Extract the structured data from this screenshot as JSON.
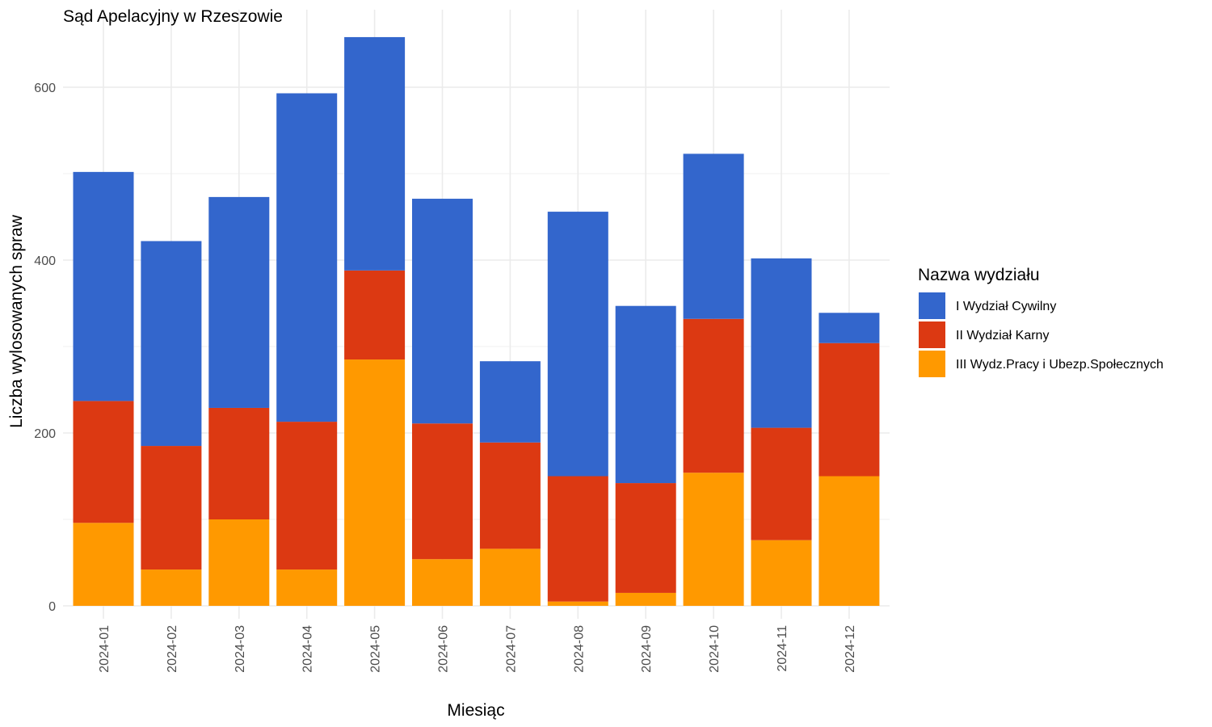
{
  "chart_data": {
    "type": "bar",
    "stacked": true,
    "title": "Sąd Apelacyjny w Rzeszowie",
    "xlabel": "Miesiąc",
    "ylabel": "Liczba wylosowanych spraw",
    "ylim": [
      0,
      660
    ],
    "y_ticks": [
      0,
      200,
      400,
      600
    ],
    "grid": true,
    "legend_title": "Nazwa wydziału",
    "legend_position": "right",
    "categories": [
      "2024-01",
      "2024-02",
      "2024-03",
      "2024-04",
      "2024-05",
      "2024-06",
      "2024-07",
      "2024-08",
      "2024-09",
      "2024-10",
      "2024-11",
      "2024-12"
    ],
    "series": [
      {
        "name": "III Wydz.Pracy i Ubezp.Społecznych",
        "color": "#ff9900",
        "values": [
          96,
          42,
          100,
          42,
          285,
          54,
          66,
          5,
          15,
          154,
          76,
          150
        ]
      },
      {
        "name": "II Wydział Karny",
        "color": "#dc3912",
        "values": [
          141,
          143,
          129,
          171,
          103,
          157,
          123,
          145,
          127,
          178,
          130,
          154
        ]
      },
      {
        "name": "I Wydział Cywilny",
        "color": "#3366cc",
        "values": [
          265,
          237,
          244,
          380,
          270,
          260,
          94,
          306,
          205,
          191,
          196,
          35
        ]
      }
    ],
    "legend_order": [
      "I Wydział Cywilny",
      "II Wydział Karny",
      "III Wydz.Pracy i Ubezp.Społecznych"
    ]
  }
}
